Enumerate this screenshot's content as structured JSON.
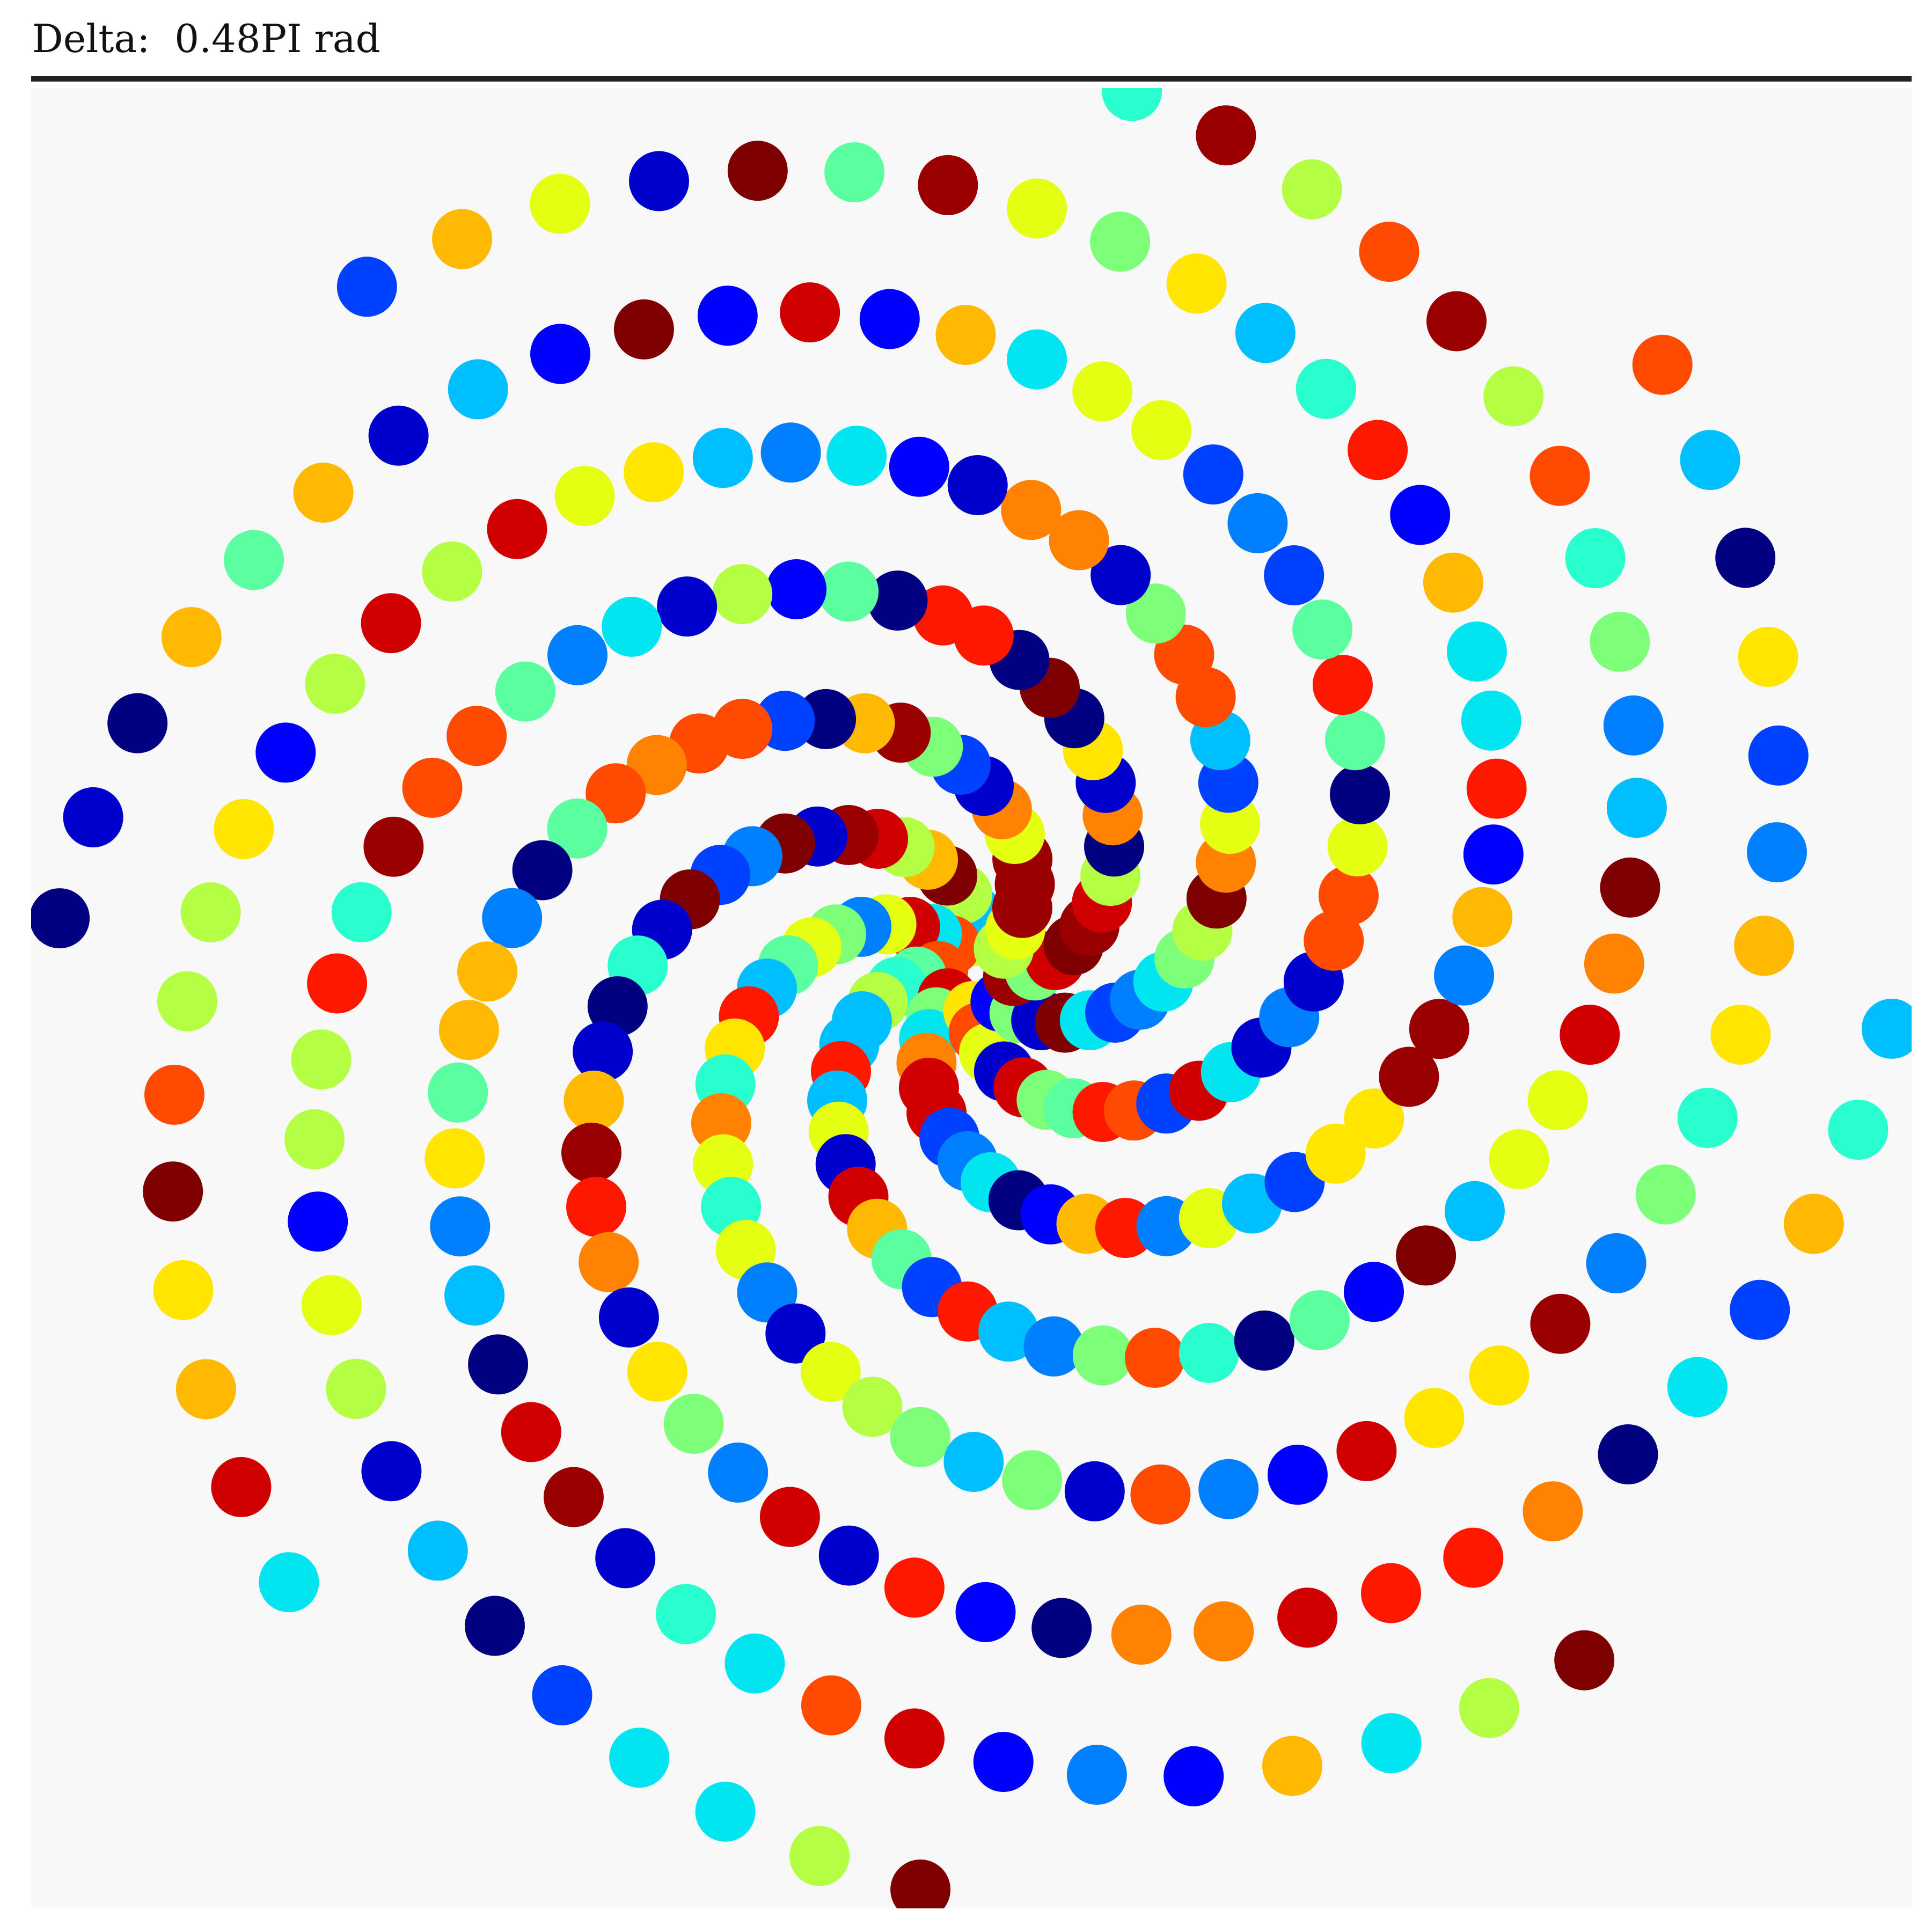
{
  "header": {
    "delta_text": "Delta:  0.48PI rad"
  },
  "colors": {
    "background": "#f8f8f8",
    "rule": "#222222",
    "palette": [
      "#000080",
      "#0000cd",
      "#0000ff",
      "#0040ff",
      "#0080ff",
      "#00bfff",
      "#00e5f0",
      "#29ffce",
      "#5cffa0",
      "#7dff7a",
      "#b4ff43",
      "#e4ff12",
      "#ffe600",
      "#ffb900",
      "#ff8200",
      "#ff4a00",
      "#ff1800",
      "#d10000",
      "#9a0000",
      "#7f0000"
    ]
  },
  "spiral": {
    "arms": 8,
    "dots_per_arm": 42,
    "delta_pi_rad": 0.48
  }
}
